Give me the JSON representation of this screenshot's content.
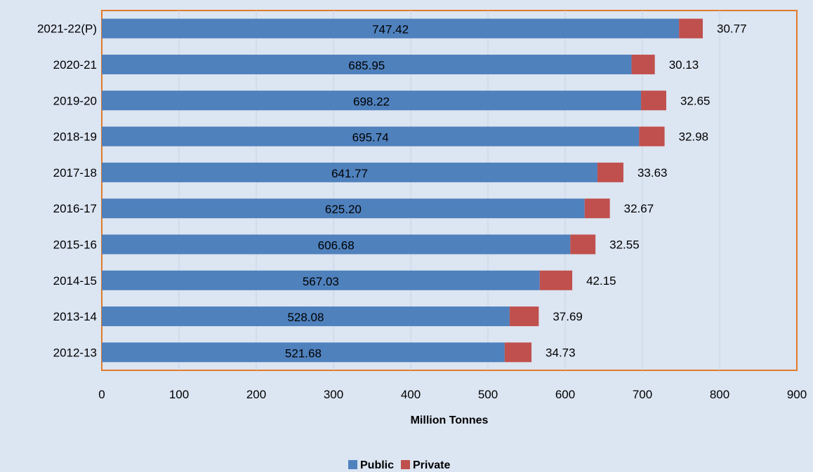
{
  "chart_data": {
    "type": "bar",
    "orientation": "horizontal",
    "stacked": true,
    "categories": [
      "2021-22(P)",
      "2020-21",
      "2019-20",
      "2018-19",
      "2017-18",
      "2016-17",
      "2015-16",
      "2014-15",
      "2013-14",
      "2012-13"
    ],
    "series": [
      {
        "name": "Public",
        "color": "#4f81bd",
        "values": [
          747.42,
          685.95,
          698.22,
          695.74,
          641.77,
          625.2,
          606.68,
          567.03,
          528.08,
          521.68
        ]
      },
      {
        "name": "Private",
        "color": "#c0504d",
        "values": [
          30.77,
          30.13,
          32.65,
          32.98,
          33.63,
          32.67,
          32.55,
          42.15,
          37.69,
          34.73
        ]
      }
    ],
    "data_labels": {
      "public": [
        "747.42",
        "685.95",
        "698.22",
        "695.74",
        "641.77",
        "625.20",
        "606.68",
        "567.03",
        "528.08",
        "521.68"
      ],
      "private": [
        "30.77",
        "30.13",
        "32.65",
        "32.98",
        "33.63",
        "32.67",
        "32.55",
        "42.15",
        "37.69",
        "34.73"
      ]
    },
    "xlabel": "Million Tonnes",
    "xlim": [
      0,
      900
    ],
    "xticks": [
      "0",
      "100",
      "200",
      "300",
      "400",
      "500",
      "600",
      "700",
      "800",
      "900"
    ],
    "grid": "vertical",
    "legend_position": "bottom",
    "plot_border_color": "#e07b2a"
  }
}
